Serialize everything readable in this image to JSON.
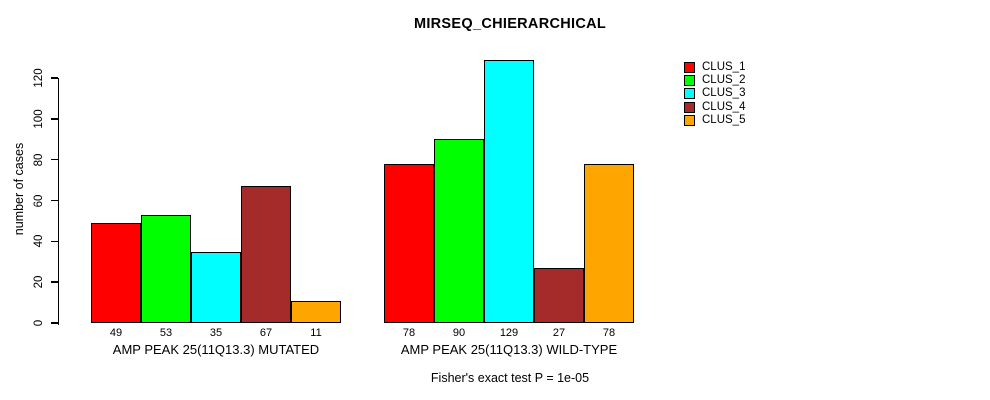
{
  "title": "MIRSEQ_CHIERARCHICAL",
  "footer": "Fisher's exact test P = 1e-05",
  "chart_data": {
    "type": "bar",
    "title": "MIRSEQ_CHIERARCHICAL",
    "xlabel": "",
    "ylabel": "number of cases",
    "ylim": [
      0,
      129
    ],
    "yticks": [
      0,
      20,
      40,
      60,
      80,
      100,
      120
    ],
    "grid": false,
    "legend_position": "top-right",
    "series_names": [
      "CLUS_1",
      "CLUS_2",
      "CLUS_3",
      "CLUS_4",
      "CLUS_5"
    ],
    "colors": [
      "#ff0000",
      "#00ff00",
      "#00ffff",
      "#a52a2a",
      "#ffa500"
    ],
    "bar_value_labels_shown": true,
    "groups": [
      {
        "label": "AMP PEAK 25(11Q13.3) MUTATED",
        "values": [
          49,
          53,
          35,
          67,
          11
        ]
      },
      {
        "label": "AMP PEAK 25(11Q13.3) WILD-TYPE",
        "values": [
          78,
          90,
          129,
          27,
          78
        ]
      }
    ],
    "annotation": "Fisher's exact test P = 1e-05"
  },
  "legend": {
    "items": [
      {
        "label": "CLUS_1",
        "color": "#ff0000"
      },
      {
        "label": "CLUS_2",
        "color": "#00ff00"
      },
      {
        "label": "CLUS_3",
        "color": "#00ffff"
      },
      {
        "label": "CLUS_4",
        "color": "#a52a2a"
      },
      {
        "label": "CLUS_5",
        "color": "#ffa500"
      }
    ]
  }
}
